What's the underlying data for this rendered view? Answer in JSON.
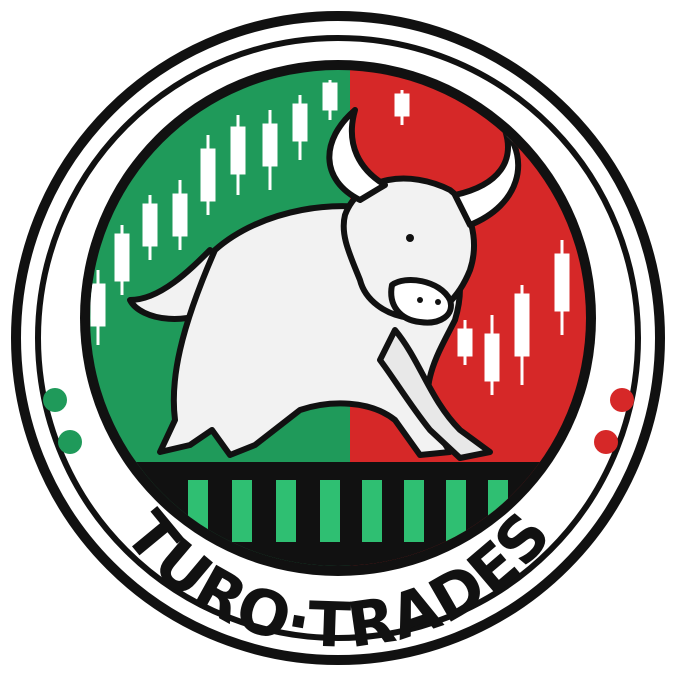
{
  "logo": {
    "brand_name": "TURO·TRADES",
    "colors": {
      "green": "#1f9a5a",
      "red": "#d62828",
      "dark": "#111111",
      "white": "#ffffff",
      "bull": "#f2f2f2"
    },
    "icons": [
      "bull-icon",
      "candlestick-chart-icon"
    ]
  }
}
